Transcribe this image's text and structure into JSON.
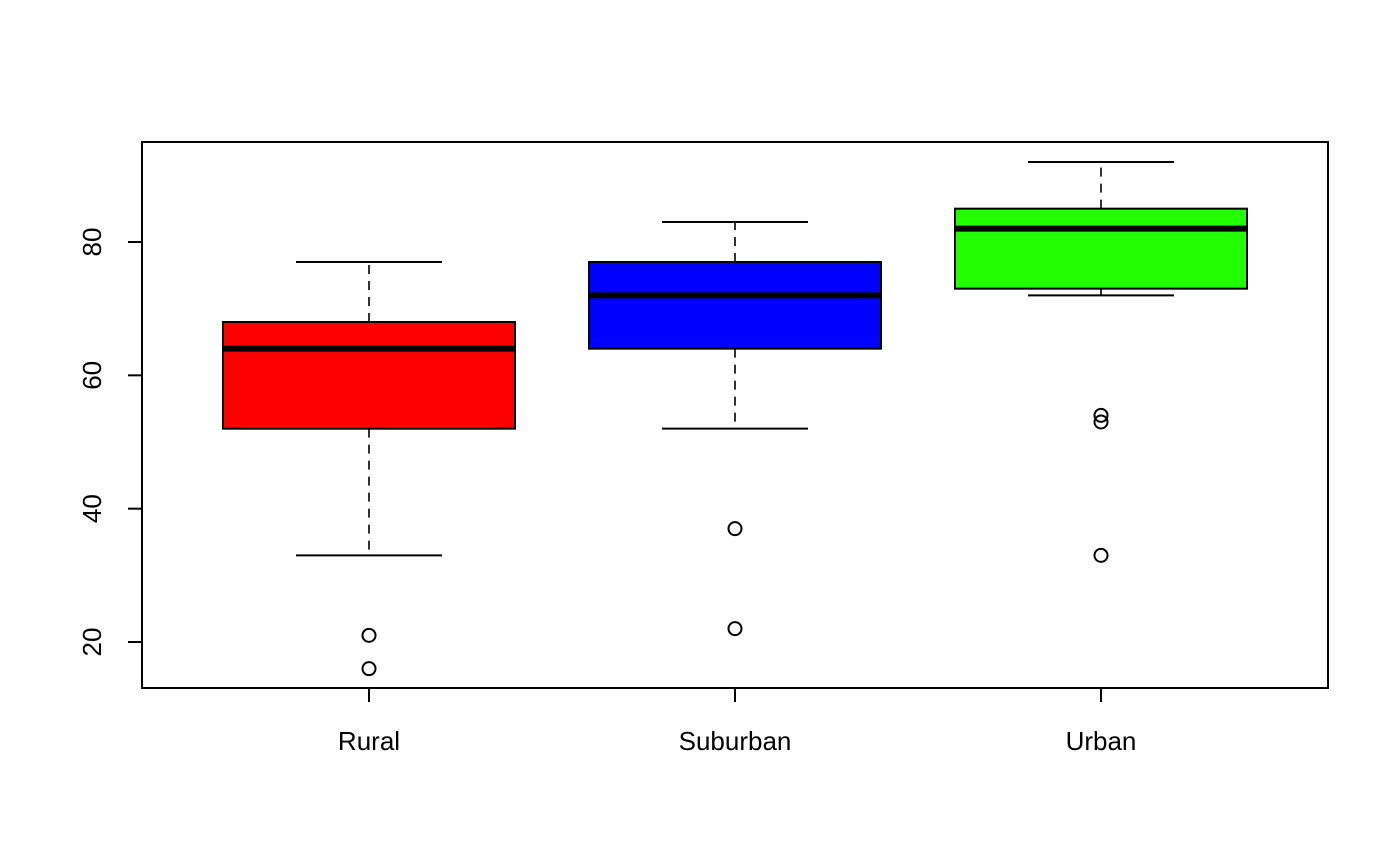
{
  "chart_data": {
    "type": "boxplot",
    "title": "",
    "xlabel": "",
    "ylabel": "",
    "categories": [
      "Rural",
      "Suburban",
      "Urban"
    ],
    "ylim": [
      13,
      95
    ],
    "y_ticks": [
      20,
      40,
      60,
      80
    ],
    "grid": false,
    "legend": "none",
    "boxes": [
      {
        "category": "Rural",
        "color": "#ff0000",
        "whisker_low": 33,
        "q1": 52,
        "median": 64,
        "q3": 68,
        "whisker_high": 77,
        "outliers": [
          21,
          16
        ]
      },
      {
        "category": "Suburban",
        "color": "#0000ff",
        "whisker_low": 52,
        "q1": 64,
        "median": 72,
        "q3": 77,
        "whisker_high": 83,
        "outliers": [
          37,
          22
        ]
      },
      {
        "category": "Urban",
        "color": "#22ff00",
        "whisker_low": 72,
        "q1": 73,
        "median": 82,
        "q3": 85,
        "whisker_high": 92,
        "outliers": [
          54,
          53,
          33
        ]
      }
    ]
  }
}
